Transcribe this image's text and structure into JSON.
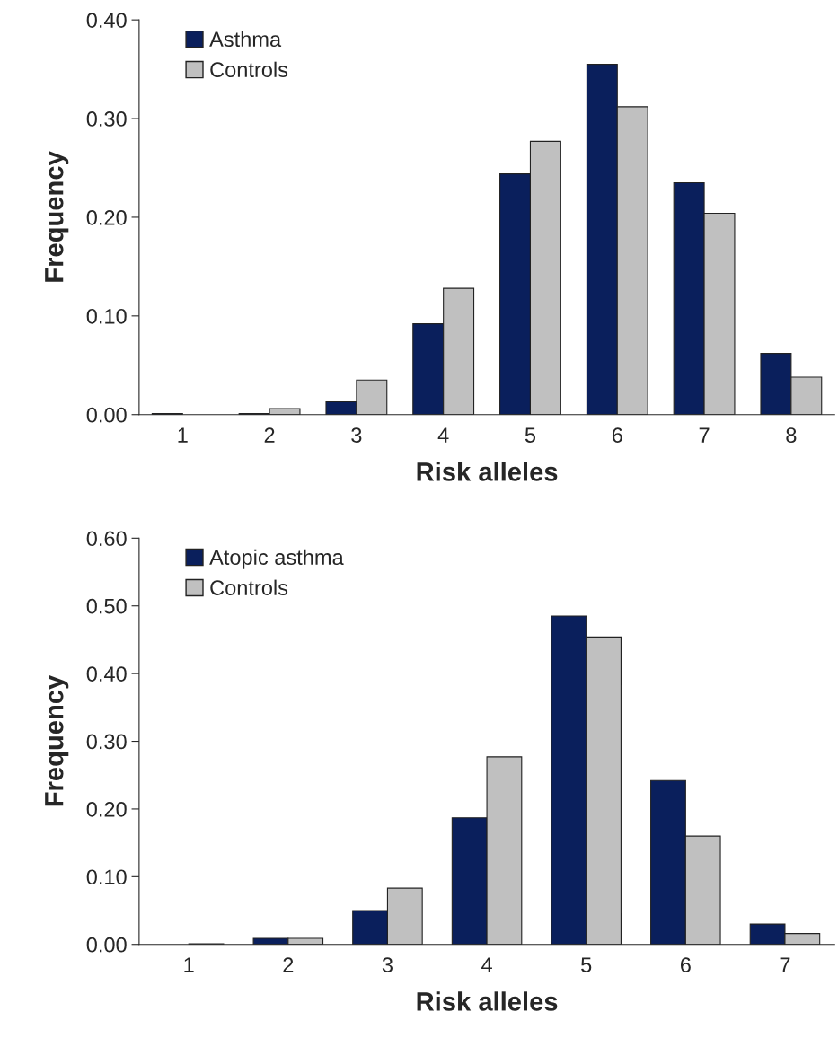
{
  "chart_data": [
    {
      "type": "bar",
      "xlabel": "Risk alleles",
      "ylabel": "Frequency",
      "categories": [
        "1",
        "2",
        "3",
        "4",
        "5",
        "6",
        "7",
        "8"
      ],
      "series": [
        {
          "name": "Asthma",
          "color": "#0a1f5c",
          "values": [
            0.001,
            0.001,
            0.013,
            0.092,
            0.244,
            0.355,
            0.235,
            0.062
          ]
        },
        {
          "name": "Controls",
          "color": "#c0c0c0",
          "values": [
            null,
            0.006,
            0.035,
            0.128,
            0.277,
            0.312,
            0.204,
            0.038
          ]
        }
      ],
      "ylim": [
        0,
        0.4
      ],
      "yticks": [
        {
          "value": 0,
          "label": "0.00"
        },
        {
          "value": 0.1,
          "label": "0.10"
        },
        {
          "value": 0.2,
          "label": "0.20"
        },
        {
          "value": 0.3,
          "label": "0.30"
        },
        {
          "value": 0.4,
          "label": "0.40"
        }
      ],
      "legend": "top left",
      "grid": false
    },
    {
      "type": "bar",
      "xlabel": "Risk alleles",
      "ylabel": "Frequency",
      "categories": [
        "1",
        "2",
        "3",
        "4",
        "5",
        "6",
        "7"
      ],
      "series": [
        {
          "name": "Atopic asthma",
          "color": "#0a1f5c",
          "values": [
            null,
            0.009,
            0.05,
            0.187,
            0.485,
            0.242,
            0.03
          ]
        },
        {
          "name": "Controls",
          "color": "#c0c0c0",
          "values": [
            0.001,
            0.009,
            0.083,
            0.277,
            0.454,
            0.16,
            0.016
          ]
        }
      ],
      "ylim": [
        0,
        0.6
      ],
      "yticks": [
        {
          "value": 0,
          "label": "0.00"
        },
        {
          "value": 0.1,
          "label": "0.10"
        },
        {
          "value": 0.2,
          "label": "0.20"
        },
        {
          "value": 0.3,
          "label": "0.30"
        },
        {
          "value": 0.4,
          "label": "0.40"
        },
        {
          "value": 0.5,
          "label": "0.50"
        },
        {
          "value": 0.6,
          "label": "0.60"
        }
      ],
      "legend": "top left",
      "grid": false
    }
  ]
}
